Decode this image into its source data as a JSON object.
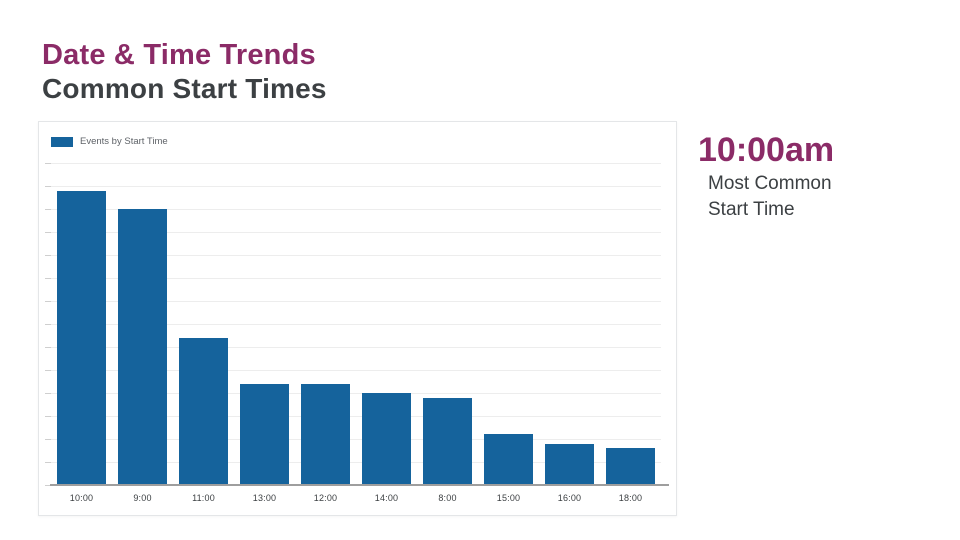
{
  "slide": {
    "title": "Date & Time Trends",
    "subtitle": "Common Start Times"
  },
  "highlight": {
    "value": "10:00am",
    "caption": "Most Common Start Time"
  },
  "colors": {
    "accent_purple": "#8b2b67",
    "heading_gray": "#3c4043",
    "bar_blue": "#15639c",
    "gridline": "#ededed",
    "axis_line": "#9e9e9e"
  },
  "chart_data": {
    "type": "bar",
    "title": "",
    "xlabel": "",
    "ylabel": "",
    "categories": [
      "10:00",
      "9:00",
      "11:00",
      "13:00",
      "12:00",
      "14:00",
      "8:00",
      "15:00",
      "16:00",
      "18:00"
    ],
    "series": [
      {
        "name": "Events by Start Time",
        "values": [
          64,
          60,
          32,
          22,
          22,
          20,
          19,
          11,
          9,
          8
        ]
      }
    ],
    "ylim": [
      0,
      70
    ],
    "gridline_interval": 5,
    "grid": true,
    "y_axis_labels_visible": false,
    "legend_position": "top-left",
    "bar_color": "#15639c"
  }
}
